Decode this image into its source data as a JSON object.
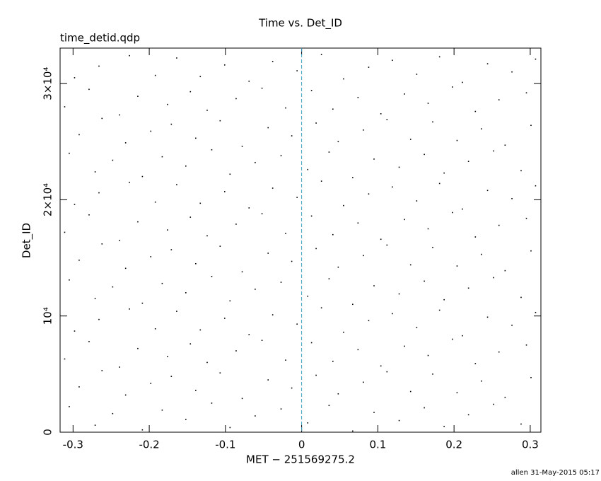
{
  "chart_data": {
    "type": "scatter",
    "title": "Time vs. Det_ID",
    "subtitle": "time_detid.qdp",
    "xlabel": "MET − 251569275.2",
    "ylabel": "Det_ID",
    "footer": "allen 31-May-2015 05:17",
    "xlim": [
      -0.317,
      0.314
    ],
    "ylim": [
      0,
      33050
    ],
    "xticks": [
      -0.3,
      -0.2,
      -0.1,
      0,
      0.1,
      0.2,
      0.3
    ],
    "yticks": [
      0,
      {
        "value": 10000,
        "label": "10⁴"
      },
      {
        "value": 20000,
        "label": "2×10⁴"
      },
      {
        "value": 30000,
        "label": "3×10⁴"
      }
    ],
    "color": "#000000",
    "vline": {
      "x": 0,
      "color": "#3a9fbf"
    },
    "x": [
      -0.305,
      -0.271,
      -0.248,
      -0.209,
      -0.183,
      -0.152,
      -0.118,
      -0.094,
      -0.061,
      -0.027,
      0.008,
      0.036,
      0.067,
      0.095,
      0.128,
      0.161,
      0.187,
      0.219,
      0.252,
      0.288,
      -0.292,
      -0.262,
      -0.231,
      -0.198,
      -0.171,
      -0.139,
      -0.107,
      -0.078,
      -0.044,
      -0.013,
      0.019,
      0.048,
      0.081,
      0.112,
      0.143,
      0.172,
      0.204,
      0.236,
      0.267,
      0.301,
      -0.311,
      -0.279,
      -0.239,
      -0.215,
      -0.176,
      -0.146,
      -0.124,
      -0.086,
      -0.052,
      -0.021,
      0.013,
      0.041,
      0.074,
      0.104,
      0.135,
      0.166,
      0.198,
      0.228,
      0.259,
      0.295,
      -0.298,
      -0.266,
      -0.226,
      -0.192,
      -0.164,
      -0.133,
      -0.101,
      -0.069,
      -0.038,
      -0.006,
      0.026,
      0.055,
      0.088,
      0.119,
      0.151,
      0.181,
      0.211,
      0.244,
      0.276,
      0.307,
      -0.305,
      -0.271,
      -0.248,
      -0.209,
      -0.183,
      -0.152,
      -0.118,
      -0.094,
      -0.061,
      -0.027,
      0.008,
      0.036,
      0.067,
      0.095,
      0.128,
      0.161,
      0.187,
      0.219,
      0.252,
      0.288,
      -0.292,
      -0.262,
      -0.231,
      -0.198,
      -0.171,
      -0.139,
      -0.107,
      -0.078,
      -0.044,
      -0.013,
      0.019,
      0.048,
      0.081,
      0.112,
      0.143,
      0.172,
      0.204,
      0.236,
      0.267,
      0.301,
      -0.311,
      -0.279,
      -0.239,
      -0.215,
      -0.176,
      -0.146,
      -0.124,
      -0.086,
      -0.052,
      -0.021,
      0.013,
      0.041,
      0.074,
      0.104,
      0.135,
      0.166,
      0.198,
      0.228,
      0.259,
      0.295,
      -0.298,
      -0.266,
      -0.226,
      -0.192,
      -0.164,
      -0.133,
      -0.101,
      -0.069,
      -0.038,
      -0.006,
      0.026,
      0.055,
      0.088,
      0.119,
      0.151,
      0.181,
      0.211,
      0.244,
      0.276,
      0.307,
      -0.305,
      -0.271,
      -0.248,
      -0.209,
      -0.183,
      -0.152,
      -0.118,
      -0.094,
      -0.061,
      -0.027,
      0.008,
      0.036,
      0.067,
      0.095,
      0.128,
      0.161,
      0.187,
      0.219,
      0.252,
      0.288,
      -0.292,
      -0.262,
      -0.231,
      -0.198,
      -0.171,
      -0.139,
      -0.107,
      -0.078,
      -0.044,
      -0.013,
      0.019,
      0.048,
      0.081,
      0.112,
      0.143,
      0.172,
      0.204,
      0.236,
      0.267,
      0.301,
      -0.311,
      -0.279,
      -0.239,
      -0.215,
      -0.176,
      -0.146,
      -0.124,
      -0.086,
      -0.052,
      -0.021,
      0.013,
      0.041,
      0.074,
      0.104,
      0.135,
      0.166,
      0.198,
      0.228,
      0.259,
      0.295,
      -0.298,
      -0.266,
      -0.226,
      -0.192,
      -0.164,
      -0.133,
      -0.101,
      -0.069,
      -0.038,
      -0.006,
      0.026,
      0.055,
      0.088,
      0.119,
      0.151,
      0.181,
      0.211,
      0.244,
      0.276,
      0.307
    ],
    "values": [
      2200,
      600,
      1600,
      200,
      1900,
      1100,
      2500,
      400,
      1400,
      2000,
      800,
      2300,
      100,
      1700,
      1000,
      2100,
      500,
      1500,
      2400,
      700,
      3900,
      5300,
      3200,
      4200,
      4800,
      3600,
      5100,
      2900,
      4500,
      3800,
      4900,
      3300,
      4300,
      5200,
      3500,
      5000,
      3400,
      4400,
      3000,
      4700,
      6300,
      7800,
      5600,
      7200,
      6500,
      7600,
      6000,
      7000,
      7900,
      6200,
      7700,
      6100,
      7100,
      5700,
      7400,
      6600,
      8000,
      5900,
      6900,
      7500,
      8700,
      9700,
      10600,
      8900,
      10400,
      8800,
      9800,
      8400,
      10100,
      9300,
      10700,
      8600,
      9600,
      10200,
      9000,
      10500,
      8300,
      9900,
      9200,
      10300,
      13100,
      11500,
      12500,
      11100,
      12800,
      12000,
      13400,
      11300,
      12300,
      12900,
      11700,
      13200,
      11000,
      12600,
      11900,
      13000,
      11400,
      12400,
      13300,
      11600,
      14800,
      16200,
      14100,
      15100,
      15700,
      14500,
      16000,
      13800,
      15400,
      14700,
      15800,
      14200,
      15200,
      16100,
      14400,
      15900,
      14300,
      15300,
      13900,
      15600,
      17200,
      18700,
      16500,
      18100,
      17400,
      18500,
      16900,
      17900,
      18800,
      17100,
      18600,
      17000,
      18000,
      16600,
      18300,
      17500,
      18900,
      16800,
      17800,
      18400,
      19600,
      20600,
      21500,
      19800,
      21300,
      19700,
      20700,
      19300,
      21000,
      20200,
      21600,
      19500,
      20500,
      21100,
      19900,
      21400,
      19200,
      20800,
      20100,
      21200,
      24000,
      22400,
      23400,
      22000,
      23700,
      22900,
      24300,
      22200,
      23200,
      23800,
      22600,
      24100,
      21900,
      23500,
      22800,
      23900,
      22300,
      23300,
      24200,
      22500,
      25600,
      27000,
      24900,
      25900,
      26500,
      25300,
      26800,
      24600,
      26200,
      25500,
      26600,
      25000,
      26000,
      26900,
      25200,
      26700,
      25100,
      26100,
      24700,
      26400,
      28000,
      29500,
      27300,
      28900,
      28200,
      29300,
      27700,
      28700,
      29600,
      27900,
      29400,
      27800,
      28800,
      27400,
      29100,
      28300,
      29700,
      27600,
      28600,
      29200,
      30500,
      31500,
      32400,
      30700,
      32200,
      30600,
      31600,
      30200,
      31900,
      31100,
      32500,
      30400,
      31400,
      32000,
      30800,
      32300,
      30100,
      31700,
      31000,
      32100
    ]
  }
}
